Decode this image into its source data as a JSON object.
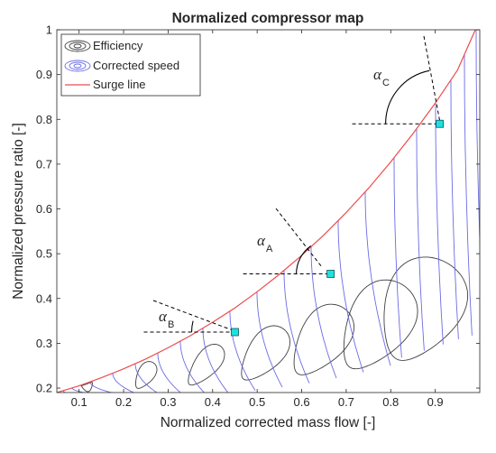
{
  "chart_data": {
    "type": "line",
    "title": "Normalized compressor map",
    "xlabel": "Normalized corrected mass flow [-]",
    "ylabel": "Normalized pressure ratio [-]",
    "xlim": [
      0.05,
      1.0
    ],
    "ylim": [
      0.19,
      1.0
    ],
    "xticks": [
      "0.1",
      "0.2",
      "0.3",
      "0.4",
      "0.5",
      "0.6",
      "0.7",
      "0.8",
      "0.9"
    ],
    "yticks": [
      "0.2",
      "0.3",
      "0.4",
      "0.5",
      "0.6",
      "0.7",
      "0.8",
      "0.9",
      "1"
    ],
    "xtick_values": [
      0.1,
      0.2,
      0.3,
      0.4,
      0.5,
      0.6,
      0.7,
      0.8,
      0.9
    ],
    "ytick_values": [
      0.2,
      0.3,
      0.4,
      0.5,
      0.6,
      0.7,
      0.8,
      0.9,
      1.0
    ],
    "grid": false,
    "legend_position": "top-left",
    "legend": [
      {
        "label": "Efficiency",
        "color": "#404040"
      },
      {
        "label": "Corrected speed",
        "color": "#6b6be6"
      },
      {
        "label": "Surge line",
        "color": "#ee4c4c"
      }
    ],
    "colors": {
      "efficiency": "#404040",
      "speed": "#6b6be6",
      "surge": "#ee4c4c",
      "marker": "#1fe0e0",
      "annotation": "#000000"
    },
    "surge_line": {
      "x": [
        0.05,
        0.1,
        0.15,
        0.2,
        0.25,
        0.3,
        0.35,
        0.4,
        0.45,
        0.5,
        0.55,
        0.6,
        0.65,
        0.7,
        0.75,
        0.8,
        0.85,
        0.9,
        0.95,
        0.99
      ],
      "y": [
        0.19,
        0.205,
        0.223,
        0.243,
        0.265,
        0.29,
        0.317,
        0.347,
        0.379,
        0.415,
        0.454,
        0.496,
        0.542,
        0.592,
        0.646,
        0.705,
        0.768,
        0.836,
        0.91,
        1.0
      ]
    },
    "operating_points": [
      {
        "name": "B",
        "x": 0.45,
        "y": 0.325,
        "angle_label": "α",
        "subscript": "B"
      },
      {
        "name": "A",
        "x": 0.665,
        "y": 0.455,
        "angle_label": "α",
        "subscript": "A"
      },
      {
        "name": "C",
        "x": 0.91,
        "y": 0.79,
        "angle_label": "α",
        "subscript": "C"
      }
    ]
  }
}
